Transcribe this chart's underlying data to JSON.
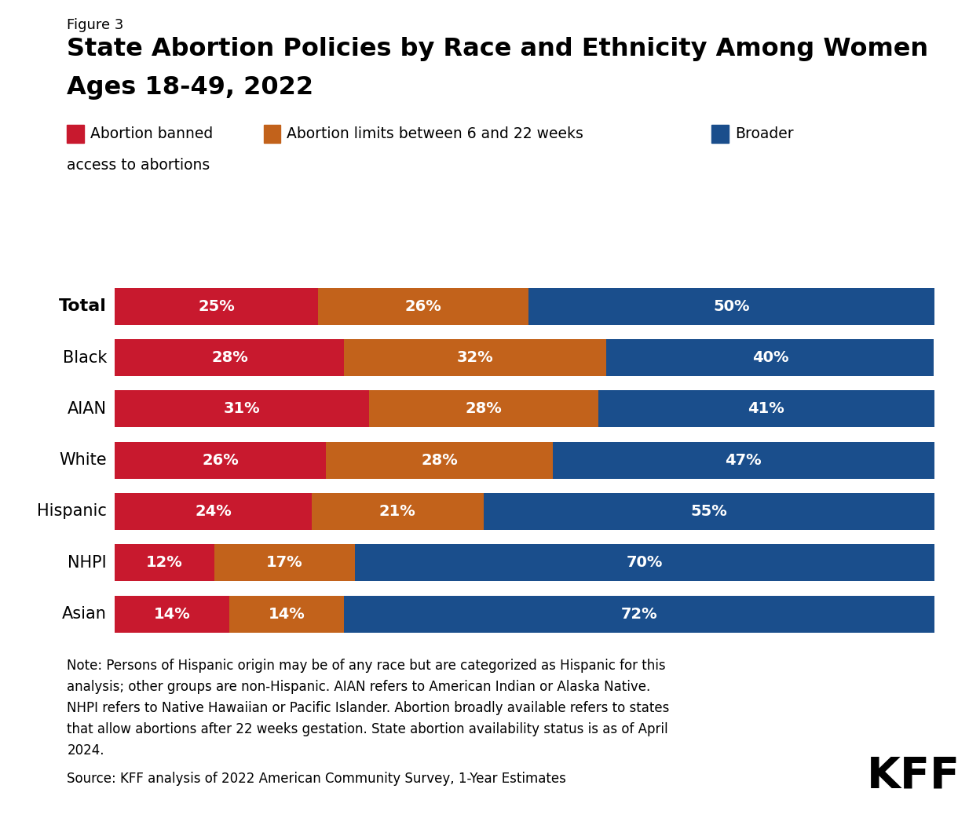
{
  "figure_label": "Figure 3",
  "title_line1": "State Abortion Policies by Race and Ethnicity Among Women",
  "title_line2": "Ages 18-49, 2022",
  "categories": [
    "Total",
    "Black",
    "AIAN",
    "White",
    "Hispanic",
    "NHPI",
    "Asian"
  ],
  "banned": [
    25,
    28,
    31,
    26,
    24,
    12,
    14
  ],
  "limits": [
    26,
    32,
    28,
    28,
    21,
    17,
    14
  ],
  "broader": [
    50,
    40,
    41,
    47,
    55,
    70,
    72
  ],
  "color_banned": "#C8192E",
  "color_limits": "#C2621B",
  "color_broader": "#1A4E8C",
  "legend_label1": "Abortion banned",
  "legend_label2": "Abortion limits between 6 and 22 weeks",
  "legend_label3_line1": "Broader",
  "legend_label3_line2": "access to abortions",
  "note_line1": "Note: Persons of Hispanic origin may be of any race but are categorized as Hispanic for this",
  "note_line2": "analysis; other groups are non-Hispanic. AIAN refers to American Indian or Alaska Native.",
  "note_line3": "NHPI refers to Native Hawaiian or Pacific Islander. Abortion broadly available refers to states",
  "note_line4": "that allow abortions after 22 weeks gestation. State abortion availability status is as of April",
  "note_line5": "2024.",
  "source": "Source: KFF analysis of 2022 American Community Survey, 1-Year Estimates",
  "background_color": "#FFFFFF",
  "text_color": "#000000",
  "white": "#FFFFFF",
  "bar_height": 0.72
}
